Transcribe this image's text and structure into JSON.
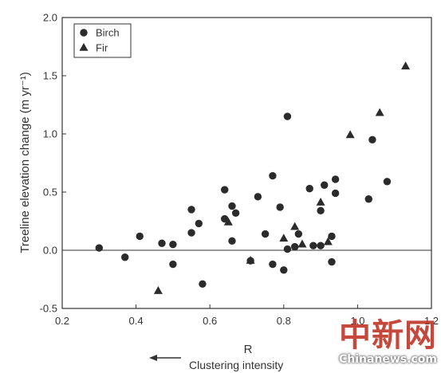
{
  "chart_data": {
    "type": "scatter",
    "xlabel": "R",
    "ylabel": "Treeline elevation change (m yr⁻¹)",
    "xlim": [
      0.2,
      1.2
    ],
    "ylim": [
      -0.5,
      2.0
    ],
    "xticks": [
      "0.2",
      "0.4",
      "0.6",
      "0.8",
      "1.0",
      "1.2"
    ],
    "yticks": [
      "-0.5",
      "0.0",
      "0.5",
      "1.0",
      "1.5",
      "2.0"
    ],
    "reference_line_y": 0.0,
    "legend_position": "top-left",
    "annotation": "Clustering intensity",
    "annotation_arrow": "left",
    "series": [
      {
        "name": "Birch",
        "marker": "circle",
        "points": [
          [
            0.3,
            0.02
          ],
          [
            0.37,
            -0.06
          ],
          [
            0.41,
            0.12
          ],
          [
            0.47,
            0.06
          ],
          [
            0.5,
            0.05
          ],
          [
            0.5,
            -0.12
          ],
          [
            0.55,
            0.35
          ],
          [
            0.55,
            0.15
          ],
          [
            0.57,
            0.23
          ],
          [
            0.58,
            -0.29
          ],
          [
            0.64,
            0.52
          ],
          [
            0.64,
            0.27
          ],
          [
            0.66,
            0.38
          ],
          [
            0.66,
            0.08
          ],
          [
            0.67,
            0.32
          ],
          [
            0.71,
            -0.09
          ],
          [
            0.73,
            0.46
          ],
          [
            0.75,
            0.14
          ],
          [
            0.77,
            0.64
          ],
          [
            0.77,
            -0.12
          ],
          [
            0.79,
            0.37
          ],
          [
            0.8,
            -0.17
          ],
          [
            0.81,
            1.15
          ],
          [
            0.81,
            0.01
          ],
          [
            0.83,
            0.03
          ],
          [
            0.84,
            0.14
          ],
          [
            0.87,
            0.53
          ],
          [
            0.88,
            0.04
          ],
          [
            0.9,
            0.34
          ],
          [
            0.9,
            0.04
          ],
          [
            0.91,
            0.56
          ],
          [
            0.93,
            0.12
          ],
          [
            0.93,
            -0.1
          ],
          [
            0.94,
            0.61
          ],
          [
            0.94,
            0.49
          ],
          [
            1.03,
            0.44
          ],
          [
            1.04,
            0.95
          ],
          [
            1.08,
            0.59
          ]
        ]
      },
      {
        "name": "Fir",
        "marker": "triangle",
        "points": [
          [
            0.46,
            -0.35
          ],
          [
            0.65,
            0.24
          ],
          [
            0.71,
            -0.09
          ],
          [
            0.8,
            0.1
          ],
          [
            0.83,
            0.2
          ],
          [
            0.85,
            0.05
          ],
          [
            0.9,
            0.41
          ],
          [
            0.92,
            0.07
          ],
          [
            0.98,
            0.99
          ],
          [
            1.06,
            1.18
          ],
          [
            1.13,
            1.58
          ]
        ]
      }
    ]
  },
  "watermark": {
    "chinese": "中新网",
    "site": "Chinanews.com"
  },
  "colors": {
    "marker": "#2b2b2b",
    "axis": "#333333",
    "text": "#333333"
  }
}
